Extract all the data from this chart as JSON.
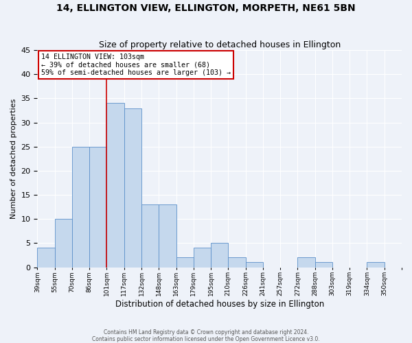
{
  "title": "14, ELLINGTON VIEW, ELLINGTON, MORPETH, NE61 5BN",
  "subtitle": "Size of property relative to detached houses in Ellington",
  "xlabel": "Distribution of detached houses by size in Ellington",
  "ylabel": "Number of detached properties",
  "footer_line1": "Contains HM Land Registry data © Crown copyright and database right 2024.",
  "footer_line2": "Contains public sector information licensed under the Open Government Licence v3.0.",
  "bin_labels": [
    "39sqm",
    "55sqm",
    "70sqm",
    "86sqm",
    "101sqm",
    "117sqm",
    "132sqm",
    "148sqm",
    "163sqm",
    "179sqm",
    "195sqm",
    "210sqm",
    "226sqm",
    "241sqm",
    "257sqm",
    "272sqm",
    "288sqm",
    "303sqm",
    "319sqm",
    "334sqm",
    "350sqm"
  ],
  "bar_values": [
    4,
    10,
    25,
    25,
    34,
    33,
    13,
    13,
    2,
    4,
    5,
    2,
    1,
    0,
    0,
    2,
    1,
    0,
    0,
    1,
    0
  ],
  "bar_color": "#c5d8ed",
  "bar_edge_color": "#5b8fc9",
  "ylim": [
    0,
    45
  ],
  "yticks": [
    0,
    5,
    10,
    15,
    20,
    25,
    30,
    35,
    40,
    45
  ],
  "vline_bar_index": 4,
  "vline_color": "#cc0000",
  "annotation_title": "14 ELLINGTON VIEW: 103sqm",
  "annotation_line1": "← 39% of detached houses are smaller (68)",
  "annotation_line2": "59% of semi-detached houses are larger (103) →",
  "annotation_box_color": "#ffffff",
  "annotation_box_edge": "#cc0000",
  "bg_color": "#eef2f9",
  "grid_color": "#ffffff",
  "title_fontsize": 10,
  "subtitle_fontsize": 9
}
